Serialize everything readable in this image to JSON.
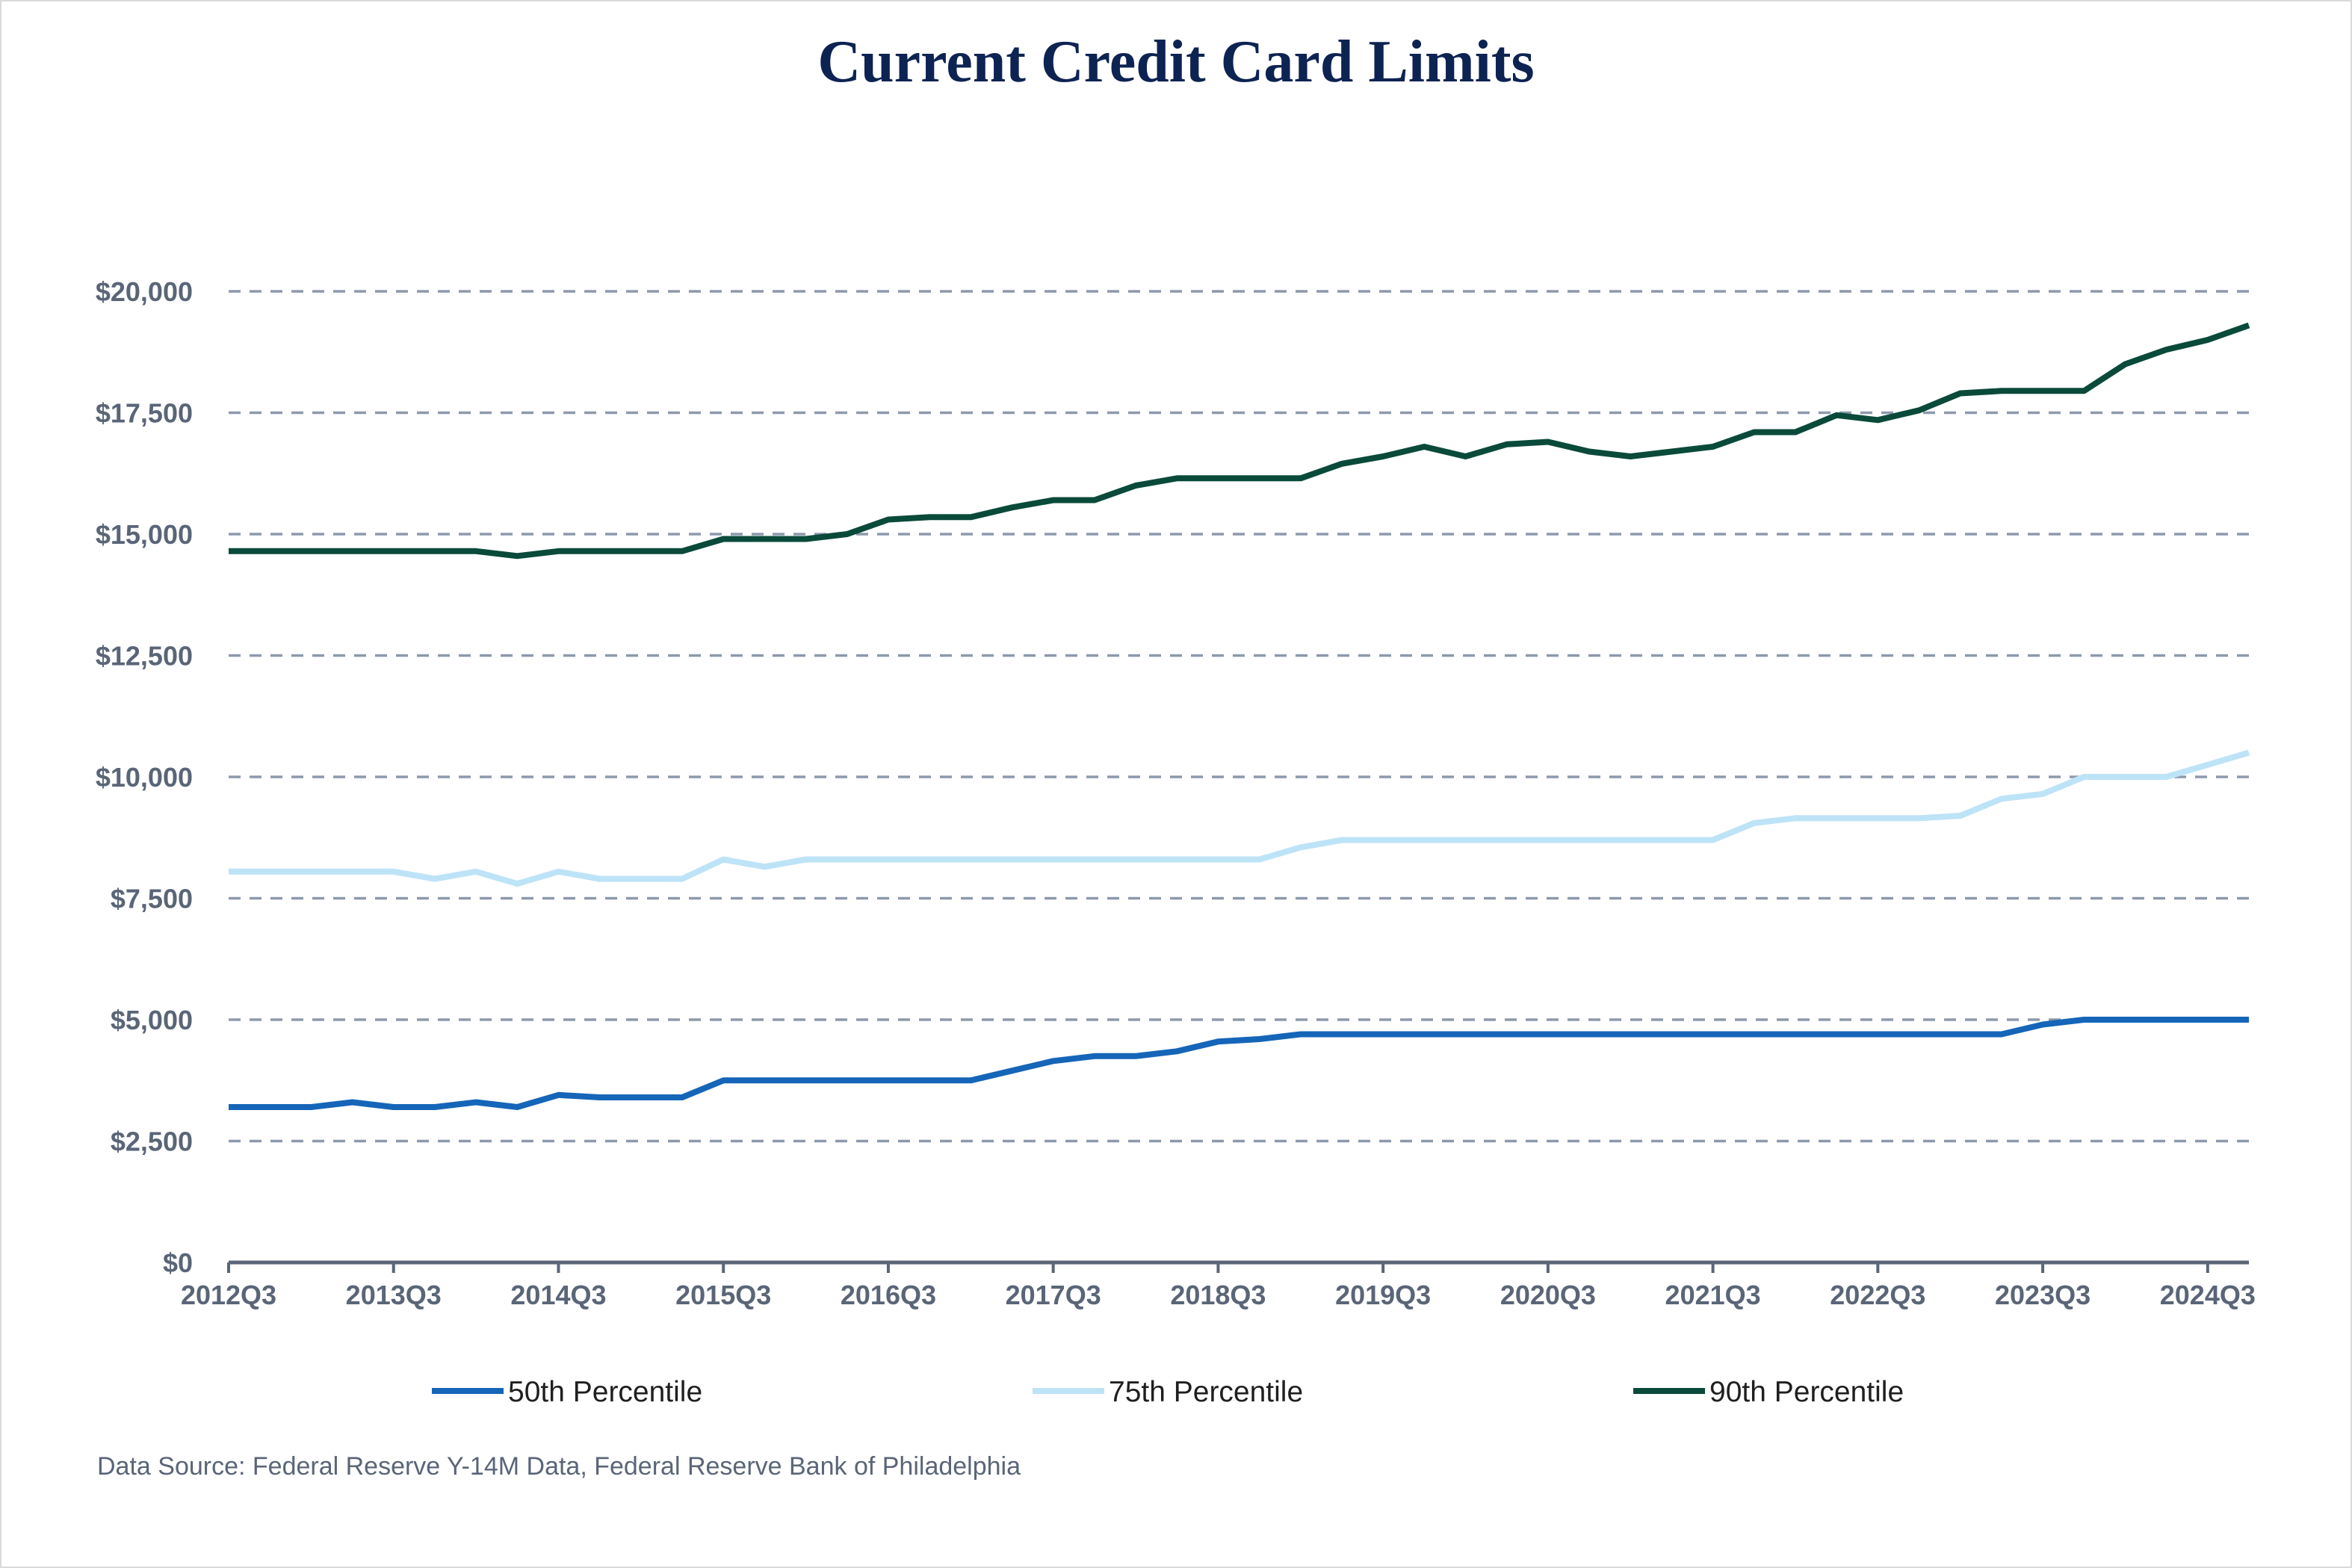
{
  "chart_data": {
    "type": "line",
    "title": "Current Credit Card Limits",
    "xlabel": "",
    "ylabel": "",
    "ylim": [
      0,
      20000
    ],
    "y_ticks": [
      0,
      2500,
      5000,
      7500,
      10000,
      12500,
      15000,
      17500,
      20000
    ],
    "y_tick_labels": [
      "$0",
      "$2,500",
      "$5,000",
      "$7,500",
      "$10,000",
      "$12,500",
      "$15,000",
      "$17,500",
      "$20,000"
    ],
    "x_tick_labels": [
      "2012Q3",
      "2013Q3",
      "2014Q3",
      "2015Q3",
      "2016Q3",
      "2017Q3",
      "2018Q3",
      "2019Q3",
      "2020Q3",
      "2021Q3",
      "2022Q3",
      "2023Q3",
      "2024Q3"
    ],
    "grid": true,
    "legend_position": "bottom",
    "x": [
      "2012Q3",
      "2012Q4",
      "2013Q1",
      "2013Q2",
      "2013Q3",
      "2013Q4",
      "2014Q1",
      "2014Q2",
      "2014Q3",
      "2014Q4",
      "2015Q1",
      "2015Q2",
      "2015Q3",
      "2015Q4",
      "2016Q1",
      "2016Q2",
      "2016Q3",
      "2016Q4",
      "2017Q1",
      "2017Q2",
      "2017Q3",
      "2017Q4",
      "2018Q1",
      "2018Q2",
      "2018Q3",
      "2018Q4",
      "2019Q1",
      "2019Q2",
      "2019Q3",
      "2019Q4",
      "2020Q1",
      "2020Q2",
      "2020Q3",
      "2020Q4",
      "2021Q1",
      "2021Q2",
      "2021Q3",
      "2021Q4",
      "2022Q1",
      "2022Q2",
      "2022Q3",
      "2022Q4",
      "2023Q1",
      "2023Q2",
      "2023Q3",
      "2023Q4",
      "2024Q1",
      "2024Q2",
      "2024Q3",
      "2024Q4"
    ],
    "series": [
      {
        "name": "50th Percentile",
        "color": "#1565b8",
        "values": [
          3200,
          3200,
          3200,
          3300,
          3200,
          3200,
          3300,
          3200,
          3450,
          3400,
          3400,
          3400,
          3750,
          3750,
          3750,
          3750,
          3750,
          3750,
          3750,
          3950,
          4150,
          4250,
          4250,
          4350,
          4550,
          4600,
          4700,
          4700,
          4700,
          4700,
          4700,
          4700,
          4700,
          4700,
          4700,
          4700,
          4700,
          4700,
          4700,
          4700,
          4700,
          4700,
          4700,
          4700,
          4900,
          5000,
          5000,
          5000,
          5000,
          5000
        ]
      },
      {
        "name": "75th Percentile",
        "color": "#bde3f7",
        "values": [
          8050,
          8050,
          8050,
          8050,
          8050,
          7900,
          8050,
          7800,
          8050,
          7900,
          7900,
          7900,
          8300,
          8150,
          8300,
          8300,
          8300,
          8300,
          8300,
          8300,
          8300,
          8300,
          8300,
          8300,
          8300,
          8300,
          8550,
          8700,
          8700,
          8700,
          8700,
          8700,
          8700,
          8700,
          8700,
          8700,
          8700,
          9050,
          9150,
          9150,
          9150,
          9150,
          9200,
          9550,
          9650,
          10000,
          10000,
          10000,
          10250,
          10500
        ]
      },
      {
        "name": "90th Percentile",
        "color": "#0a4a3a",
        "values": [
          14650,
          14650,
          14650,
          14650,
          14650,
          14650,
          14650,
          14550,
          14650,
          14650,
          14650,
          14650,
          14900,
          14900,
          14900,
          15000,
          15300,
          15350,
          15350,
          15550,
          15700,
          15700,
          16000,
          16150,
          16150,
          16150,
          16150,
          16450,
          16600,
          16800,
          16600,
          16850,
          16900,
          16700,
          16600,
          16700,
          16800,
          17100,
          17100,
          17450,
          17350,
          17550,
          17900,
          17950,
          17950,
          17950,
          18500,
          18800,
          19000,
          19300
        ]
      }
    ],
    "source_note": "Data Source: Federal Reserve Y-14M Data, Federal Reserve Bank of Philadelphia"
  }
}
